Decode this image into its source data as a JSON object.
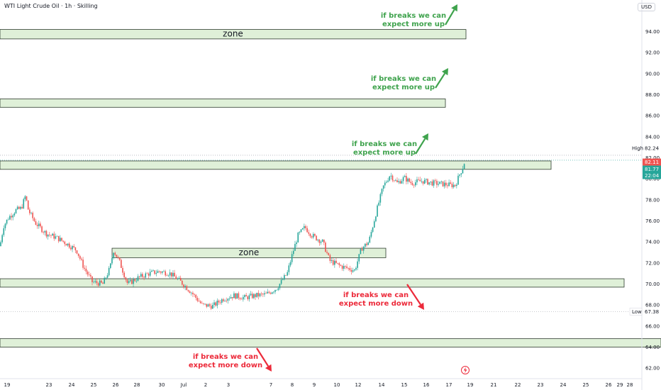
{
  "header": {
    "title": "WTI Light Crude Oil · 1h · Skilling",
    "currency": "USD"
  },
  "price_tags": {
    "high_label": "High",
    "high_value": "82.24",
    "price_red": "82.11",
    "price_green": "81.77",
    "countdown": "22:04",
    "low_label": "Low",
    "low_value": "67.38"
  },
  "colors": {
    "up_candle": "#26a69a",
    "down_candle": "#ef5350",
    "zone_fill": "#dff0d8",
    "zone_border": "#2e3b2e",
    "up_text": "#3fa34d",
    "down_text": "#ec2a3a"
  },
  "chart_data": {
    "type": "candlestick",
    "y_range": [
      61,
      97
    ],
    "y_ticks": [
      "62.00",
      "64.00",
      "66.00",
      "68.00",
      "70.00",
      "72.00",
      "74.00",
      "76.00",
      "78.00",
      "80.00",
      "82.00",
      "84.00",
      "86.00",
      "88.00",
      "90.00",
      "92.00",
      "94.00"
    ],
    "x_labels": [
      "19",
      "23",
      "24",
      "25",
      "26",
      "28",
      "30",
      "Jul",
      "2",
      "3",
      "7",
      "8",
      "9",
      "10",
      "12",
      "14",
      "15",
      "16",
      "17",
      "19",
      "21",
      "22",
      "23",
      "24",
      "25",
      "26",
      "28",
      "29"
    ],
    "price_path": [
      [
        0,
        73.6
      ],
      [
        5,
        75.5
      ],
      [
        12,
        76.3
      ],
      [
        22,
        77.0
      ],
      [
        30,
        77.2
      ],
      [
        36,
        78.4
      ],
      [
        40,
        77.0
      ],
      [
        50,
        75.8
      ],
      [
        65,
        74.8
      ],
      [
        80,
        74.4
      ],
      [
        95,
        73.8
      ],
      [
        108,
        73.2
      ],
      [
        118,
        71.6
      ],
      [
        130,
        70.2
      ],
      [
        145,
        70.0
      ],
      [
        155,
        71.5
      ],
      [
        160,
        73.2
      ],
      [
        168,
        72.2
      ],
      [
        180,
        70.0
      ],
      [
        195,
        70.6
      ],
      [
        210,
        71.0
      ],
      [
        225,
        71.2
      ],
      [
        240,
        71.0
      ],
      [
        255,
        70.2
      ],
      [
        270,
        69.2
      ],
      [
        285,
        68.0
      ],
      [
        300,
        67.9
      ],
      [
        315,
        68.6
      ],
      [
        330,
        68.9
      ],
      [
        345,
        68.7
      ],
      [
        360,
        68.9
      ],
      [
        375,
        69.0
      ],
      [
        390,
        69.6
      ],
      [
        405,
        71.0
      ],
      [
        412,
        72.8
      ],
      [
        420,
        74.6
      ],
      [
        430,
        75.4
      ],
      [
        440,
        74.6
      ],
      [
        455,
        74.0
      ],
      [
        465,
        72.2
      ],
      [
        480,
        71.7
      ],
      [
        495,
        71.4
      ],
      [
        500,
        71.3
      ],
      [
        510,
        73.4
      ],
      [
        520,
        74.0
      ],
      [
        530,
        76.7
      ],
      [
        540,
        79.2
      ],
      [
        550,
        80.4
      ],
      [
        560,
        79.6
      ],
      [
        570,
        80.1
      ],
      [
        580,
        79.6
      ],
      [
        595,
        79.8
      ],
      [
        610,
        79.6
      ],
      [
        625,
        79.5
      ],
      [
        635,
        79.4
      ],
      [
        642,
        79.4
      ],
      [
        648,
        80.4
      ],
      [
        652,
        81.0
      ],
      [
        656,
        81.8
      ]
    ],
    "zones": [
      {
        "label": "zone",
        "y_top": 94.2,
        "y_bottom": 93.3,
        "x_start": 0,
        "x_end": 657
      },
      {
        "label": "",
        "y_top": 87.6,
        "y_bottom": 86.8,
        "x_start": 0,
        "x_end": 628
      },
      {
        "label": "",
        "y_top": 81.7,
        "y_bottom": 80.9,
        "x_start": 0,
        "x_end": 777
      },
      {
        "label": "zone",
        "y_top": 73.4,
        "y_bottom": 72.5,
        "x_start": 158,
        "x_end": 544
      },
      {
        "label": "",
        "y_top": 70.5,
        "y_bottom": 69.7,
        "x_start": 0,
        "x_end": 880
      },
      {
        "label": "",
        "y_top": 64.8,
        "y_bottom": 64.0,
        "x_start": 0,
        "x_end": 932
      }
    ],
    "annotations": [
      {
        "text": [
          "if breaks we can",
          "expect more up"
        ],
        "direction": "up"
      },
      {
        "text": [
          "if breaks we can",
          "expect more up"
        ],
        "direction": "up"
      },
      {
        "text": [
          "if breaks we can",
          "expect more up"
        ],
        "direction": "up"
      },
      {
        "text": [
          "if breaks we can",
          "expect more down"
        ],
        "direction": "down"
      },
      {
        "text": [
          "if breaks we can",
          "expect more down"
        ],
        "direction": "down"
      }
    ]
  }
}
